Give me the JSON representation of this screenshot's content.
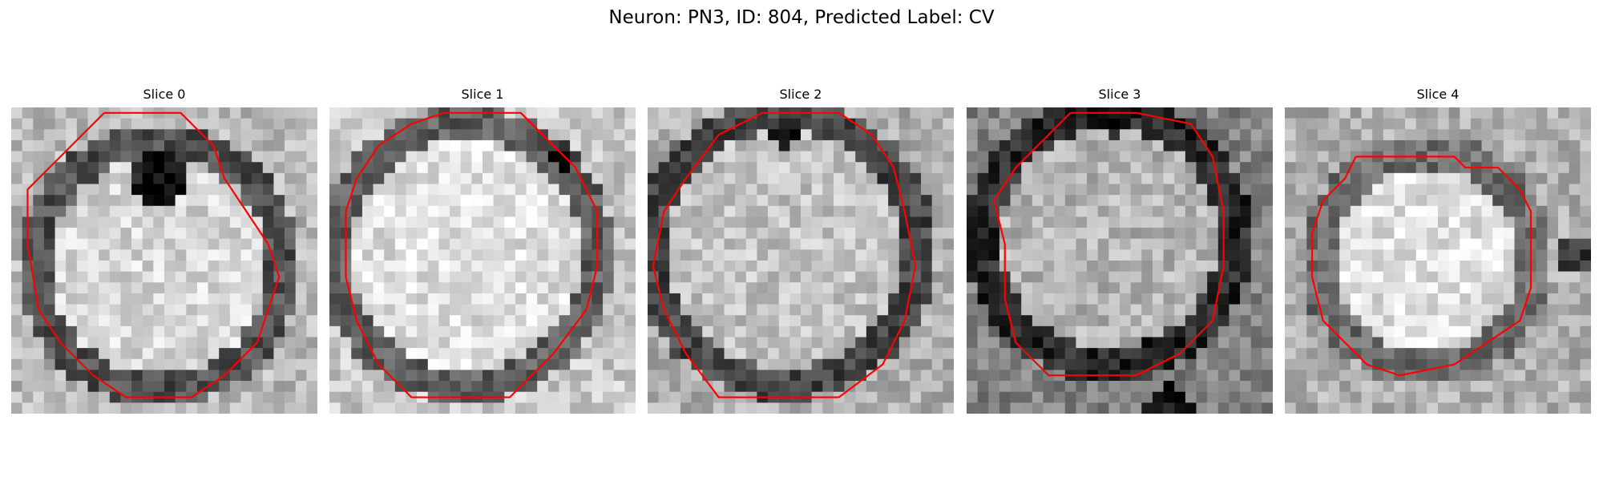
{
  "figure": {
    "title": "Neuron: PN3, ID: 804, Predicted Label: CV",
    "contour_color": "#ff0000",
    "panels": [
      {
        "title": "Slice 0",
        "contour": [
          [
            8,
            0
          ],
          [
            15,
            0
          ],
          [
            18,
            3
          ],
          [
            19,
            6
          ],
          [
            21,
            9
          ],
          [
            23,
            12
          ],
          [
            24,
            15
          ],
          [
            23,
            18
          ],
          [
            22,
            21
          ],
          [
            19,
            24
          ],
          [
            16,
            26
          ],
          [
            10,
            26
          ],
          [
            7,
            24
          ],
          [
            4,
            21
          ],
          [
            2,
            18
          ],
          [
            1,
            12
          ],
          [
            1,
            7
          ],
          [
            4,
            4
          ],
          [
            6,
            2
          ]
        ]
      },
      {
        "title": "Slice 1",
        "contour": [
          [
            10,
            0
          ],
          [
            7,
            1
          ],
          [
            4,
            3
          ],
          [
            2,
            6
          ],
          [
            1,
            9
          ],
          [
            1,
            15
          ],
          [
            2,
            19
          ],
          [
            4,
            23
          ],
          [
            7,
            26
          ],
          [
            16,
            26
          ],
          [
            20,
            22
          ],
          [
            23,
            18
          ],
          [
            24,
            14
          ],
          [
            24,
            9
          ],
          [
            22,
            5
          ],
          [
            19,
            2
          ],
          [
            17,
            0
          ]
        ]
      },
      {
        "title": "Slice 2",
        "contour": [
          [
            10,
            0
          ],
          [
            17,
            0
          ],
          [
            20,
            2
          ],
          [
            22,
            5
          ],
          [
            23,
            9
          ],
          [
            24,
            14
          ],
          [
            23,
            19
          ],
          [
            21,
            23
          ],
          [
            17,
            26
          ],
          [
            6,
            26
          ],
          [
            3,
            22
          ],
          [
            1,
            18
          ],
          [
            0,
            14
          ],
          [
            1,
            9
          ],
          [
            3,
            6
          ],
          [
            6,
            2
          ]
        ]
      },
      {
        "title": "Slice 3",
        "contour": [
          [
            9,
            0
          ],
          [
            15,
            0
          ],
          [
            20,
            1
          ],
          [
            22,
            4
          ],
          [
            23,
            9
          ],
          [
            23,
            14
          ],
          [
            22,
            19
          ],
          [
            19,
            22
          ],
          [
            15,
            24
          ],
          [
            7,
            24
          ],
          [
            4,
            21
          ],
          [
            3,
            17
          ],
          [
            3,
            12
          ],
          [
            2,
            8
          ],
          [
            4,
            5
          ],
          [
            7,
            2
          ]
        ]
      },
      {
        "title": "Slice 4",
        "contour": [
          [
            6,
            4
          ],
          [
            15,
            4
          ],
          [
            16,
            5
          ],
          [
            19,
            5
          ],
          [
            21,
            7
          ],
          [
            22,
            9
          ],
          [
            22,
            13
          ],
          [
            22,
            16
          ],
          [
            21,
            19
          ],
          [
            18,
            21
          ],
          [
            15,
            23
          ],
          [
            10,
            24
          ],
          [
            7,
            23
          ],
          [
            5,
            21
          ],
          [
            3,
            19
          ],
          [
            2,
            15
          ],
          [
            2,
            11
          ],
          [
            3,
            8
          ],
          [
            5,
            6
          ]
        ]
      }
    ]
  }
}
